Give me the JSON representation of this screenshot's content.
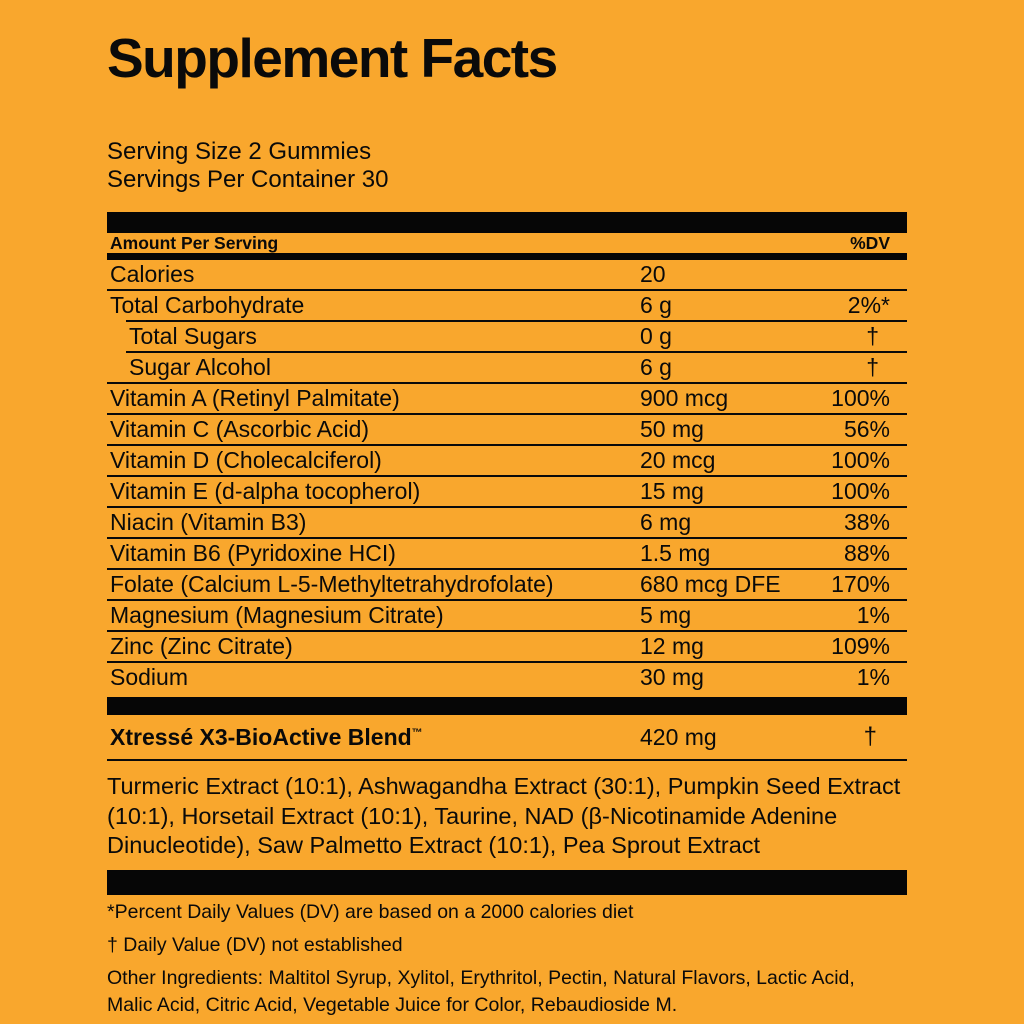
{
  "colors": {
    "background": "#F9A72D",
    "ink": "#0a0a0a"
  },
  "title": "Supplement Facts",
  "serving": {
    "line1": "Serving Size 2 Gummies",
    "line2": "Servings Per Container 30"
  },
  "table": {
    "header": {
      "left": "Amount Per Serving",
      "right": "%DV"
    },
    "rows": [
      {
        "name": "Calories",
        "amount": "20",
        "dv": "",
        "indent": false
      },
      {
        "name": "Total Carbohydrate",
        "amount": "6 g",
        "dv": "2%*",
        "indent": false
      },
      {
        "name": "Total Sugars",
        "amount": "0 g",
        "dv": "†",
        "indent": true
      },
      {
        "name": "Sugar Alcohol",
        "amount": "6 g",
        "dv": "†",
        "indent": true
      },
      {
        "name": "Vitamin A (Retinyl Palmitate)",
        "amount": "900 mcg",
        "dv": "100%",
        "indent": false
      },
      {
        "name": "Vitamin C (Ascorbic Acid)",
        "amount": "50 mg",
        "dv": "56%",
        "indent": false
      },
      {
        "name": "Vitamin D (Cholecalciferol)",
        "amount": "20 mcg",
        "dv": "100%",
        "indent": false
      },
      {
        "name": "Vitamin E (d-alpha tocopherol)",
        "amount": "15 mg",
        "dv": "100%",
        "indent": false
      },
      {
        "name": "Niacin (Vitamin B3)",
        "amount": "6 mg",
        "dv": "38%",
        "indent": false
      },
      {
        "name": "Vitamin B6 (Pyridoxine HCI)",
        "amount": "1.5 mg",
        "dv": "88%",
        "indent": false
      },
      {
        "name": "Folate (Calcium L-5-Methyltetrahydrofolate)",
        "amount": "680 mcg DFE",
        "dv": "170%",
        "indent": false
      },
      {
        "name": "Magnesium (Magnesium Citrate)",
        "amount": "5 mg",
        "dv": "1%",
        "indent": false
      },
      {
        "name": "Zinc (Zinc Citrate)",
        "amount": "12 mg",
        "dv": "109%",
        "indent": false
      },
      {
        "name": "Sodium",
        "amount": "30 mg",
        "dv": "1%",
        "indent": false
      }
    ],
    "blend": {
      "name": "Xtressé X3-BioActive Blend",
      "tm": "™",
      "amount": "420 mg",
      "dv": "†"
    },
    "blend_ingredients": "Turmeric Extract (10:1), Ashwagandha Extract (30:1), Pumpkin Seed Extract (10:1), Horsetail Extract (10:1), Taurine, NAD (β-Nicotinamide Adenine Dinucleotide), Saw Palmetto Extract (10:1), Pea Sprout Extract"
  },
  "footnotes": {
    "dv_note": "*Percent Daily Values (DV) are based on a 2000 calories diet",
    "dagger_note": "† Daily Value (DV) not established",
    "other_ingredients": "Other Ingredients: Maltitol Syrup, Xylitol, Erythritol, Pectin, Natural Flavors, Lactic Acid, Malic Acid, Citric Acid, Vegetable Juice for Color, Rebaudioside M."
  }
}
